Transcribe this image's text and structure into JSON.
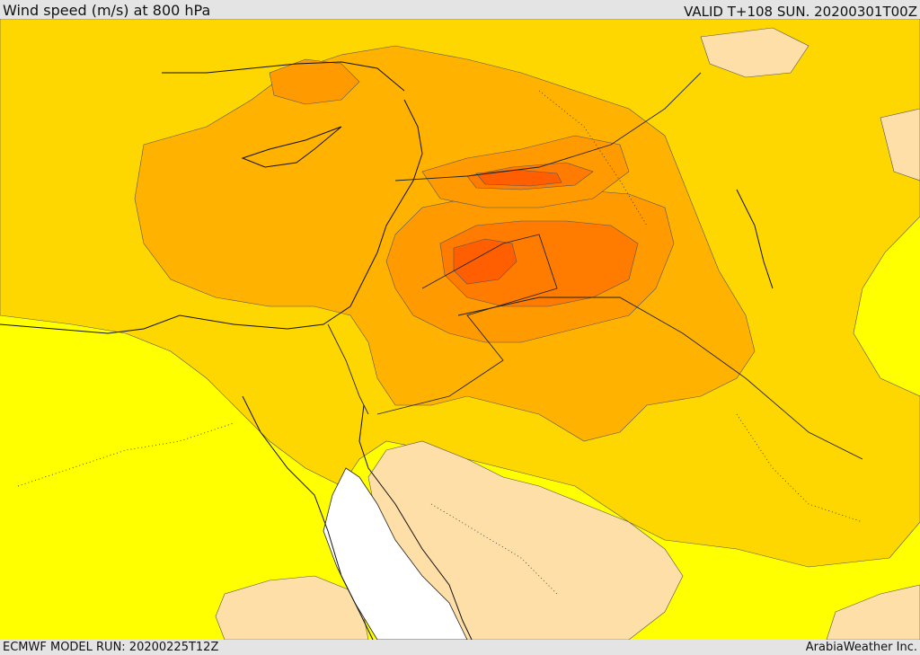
{
  "header": {
    "title": "Wind speed (m/s) at 800 hPa",
    "valid": "VALID T+108 SUN. 20200301T00Z"
  },
  "footer": {
    "model_run": "ECMWF MODEL RUN: 20200225T12Z",
    "credit": "ArabiaWeather Inc."
  },
  "palette": {
    "calm": "#ffdfa8",
    "light": "#ffff00",
    "moderate": "#ffd700",
    "fresh": "#ffb300",
    "strong": "#ff9a00",
    "very_strong": "#ff7c00",
    "severe": "#ff5f00",
    "no_data": "#ffffff"
  }
}
